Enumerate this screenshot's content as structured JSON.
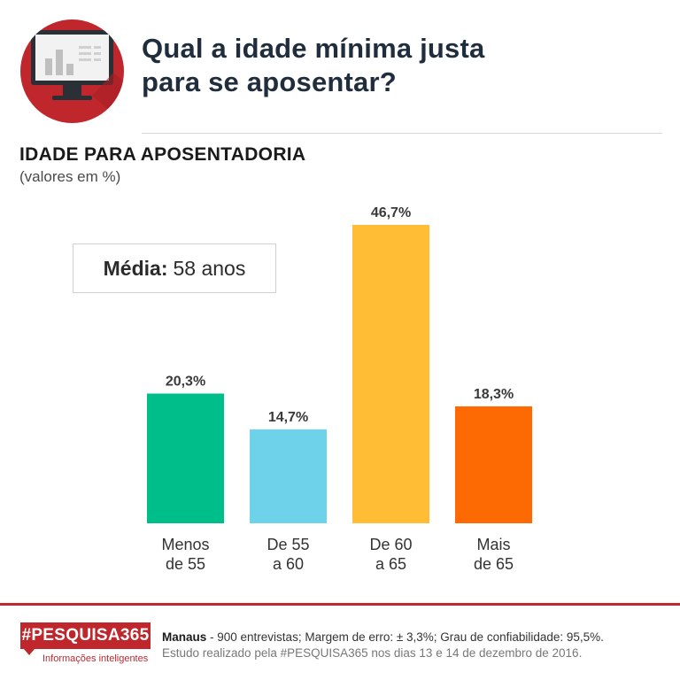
{
  "header": {
    "title_line1": "Qual a idade mínima justa",
    "title_line2": "para se aposentar?"
  },
  "section": {
    "title": "IDADE PARA APOSENTADORIA",
    "subtitle": "(valores em %)"
  },
  "average": {
    "label": "Média:",
    "value": "58 anos"
  },
  "chart_data": {
    "type": "bar",
    "categories": [
      [
        "Menos",
        "de 55"
      ],
      [
        "De 55",
        "a 60"
      ],
      [
        "De 60",
        "a 65"
      ],
      [
        "Mais",
        "de 65"
      ]
    ],
    "values": [
      20.3,
      14.7,
      46.7,
      18.3
    ],
    "value_labels": [
      "20,3%",
      "14,7%",
      "46,7%",
      "18,3%"
    ],
    "colors": [
      "#00be8a",
      "#6dd2ea",
      "#ffbd36",
      "#fd6a04"
    ],
    "ylim": [
      0,
      46.7
    ],
    "grid": false
  },
  "footer": {
    "brand": "#PESQUISA365",
    "brand_tagline": "Informações inteligentes",
    "city": "Manaus",
    "details": " - 900 entrevistas; Margem de erro: ± 3,3%; Grau de confiabilidade: 95,5%.",
    "study": "Estudo realizado pela #PESQUISA365 nos dias 13 e 14 de dezembro de 2016."
  },
  "colors": {
    "brand_red": "#c0272d",
    "title_navy": "#1f2d3d"
  }
}
